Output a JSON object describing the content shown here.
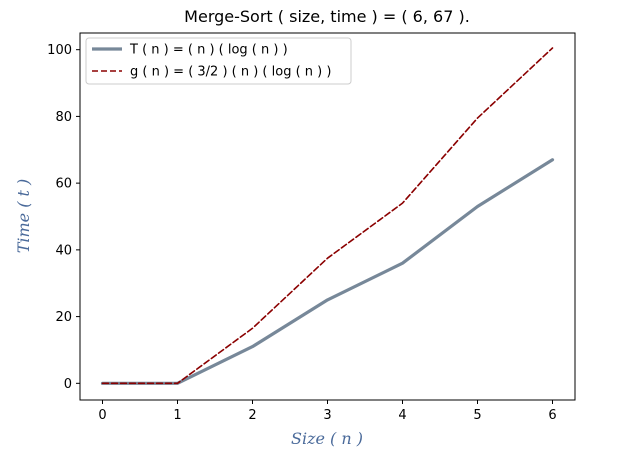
{
  "chart_data": {
    "type": "line",
    "title": "Merge-Sort ( size, time ) = ( 6, 67 ).",
    "xlabel": "Size ( n )",
    "ylabel": "Time ( t )",
    "xlim": [
      -0.3,
      6.3
    ],
    "ylim": [
      -5,
      105
    ],
    "x_ticks": [
      0,
      1,
      2,
      3,
      4,
      5,
      6
    ],
    "y_ticks": [
      0,
      20,
      40,
      60,
      80,
      100
    ],
    "x": [
      0,
      1,
      2,
      3,
      4,
      5,
      6
    ],
    "series": [
      {
        "name": "T ( n ) = ( n ) ( log ( n ) )",
        "values": [
          0,
          0,
          11,
          25,
          36,
          53,
          67
        ],
        "color": "#778899",
        "style": "solid"
      },
      {
        "name": "g ( n ) = ( 3/2 ) ( n ) ( log ( n ) )",
        "values": [
          0,
          0,
          16.5,
          37.5,
          54,
          79.5,
          100.5
        ],
        "color": "#8b0000",
        "style": "dashed"
      }
    ],
    "grid": false,
    "legend_position": "upper-left",
    "axis_label_color": "#4a6a9a"
  }
}
